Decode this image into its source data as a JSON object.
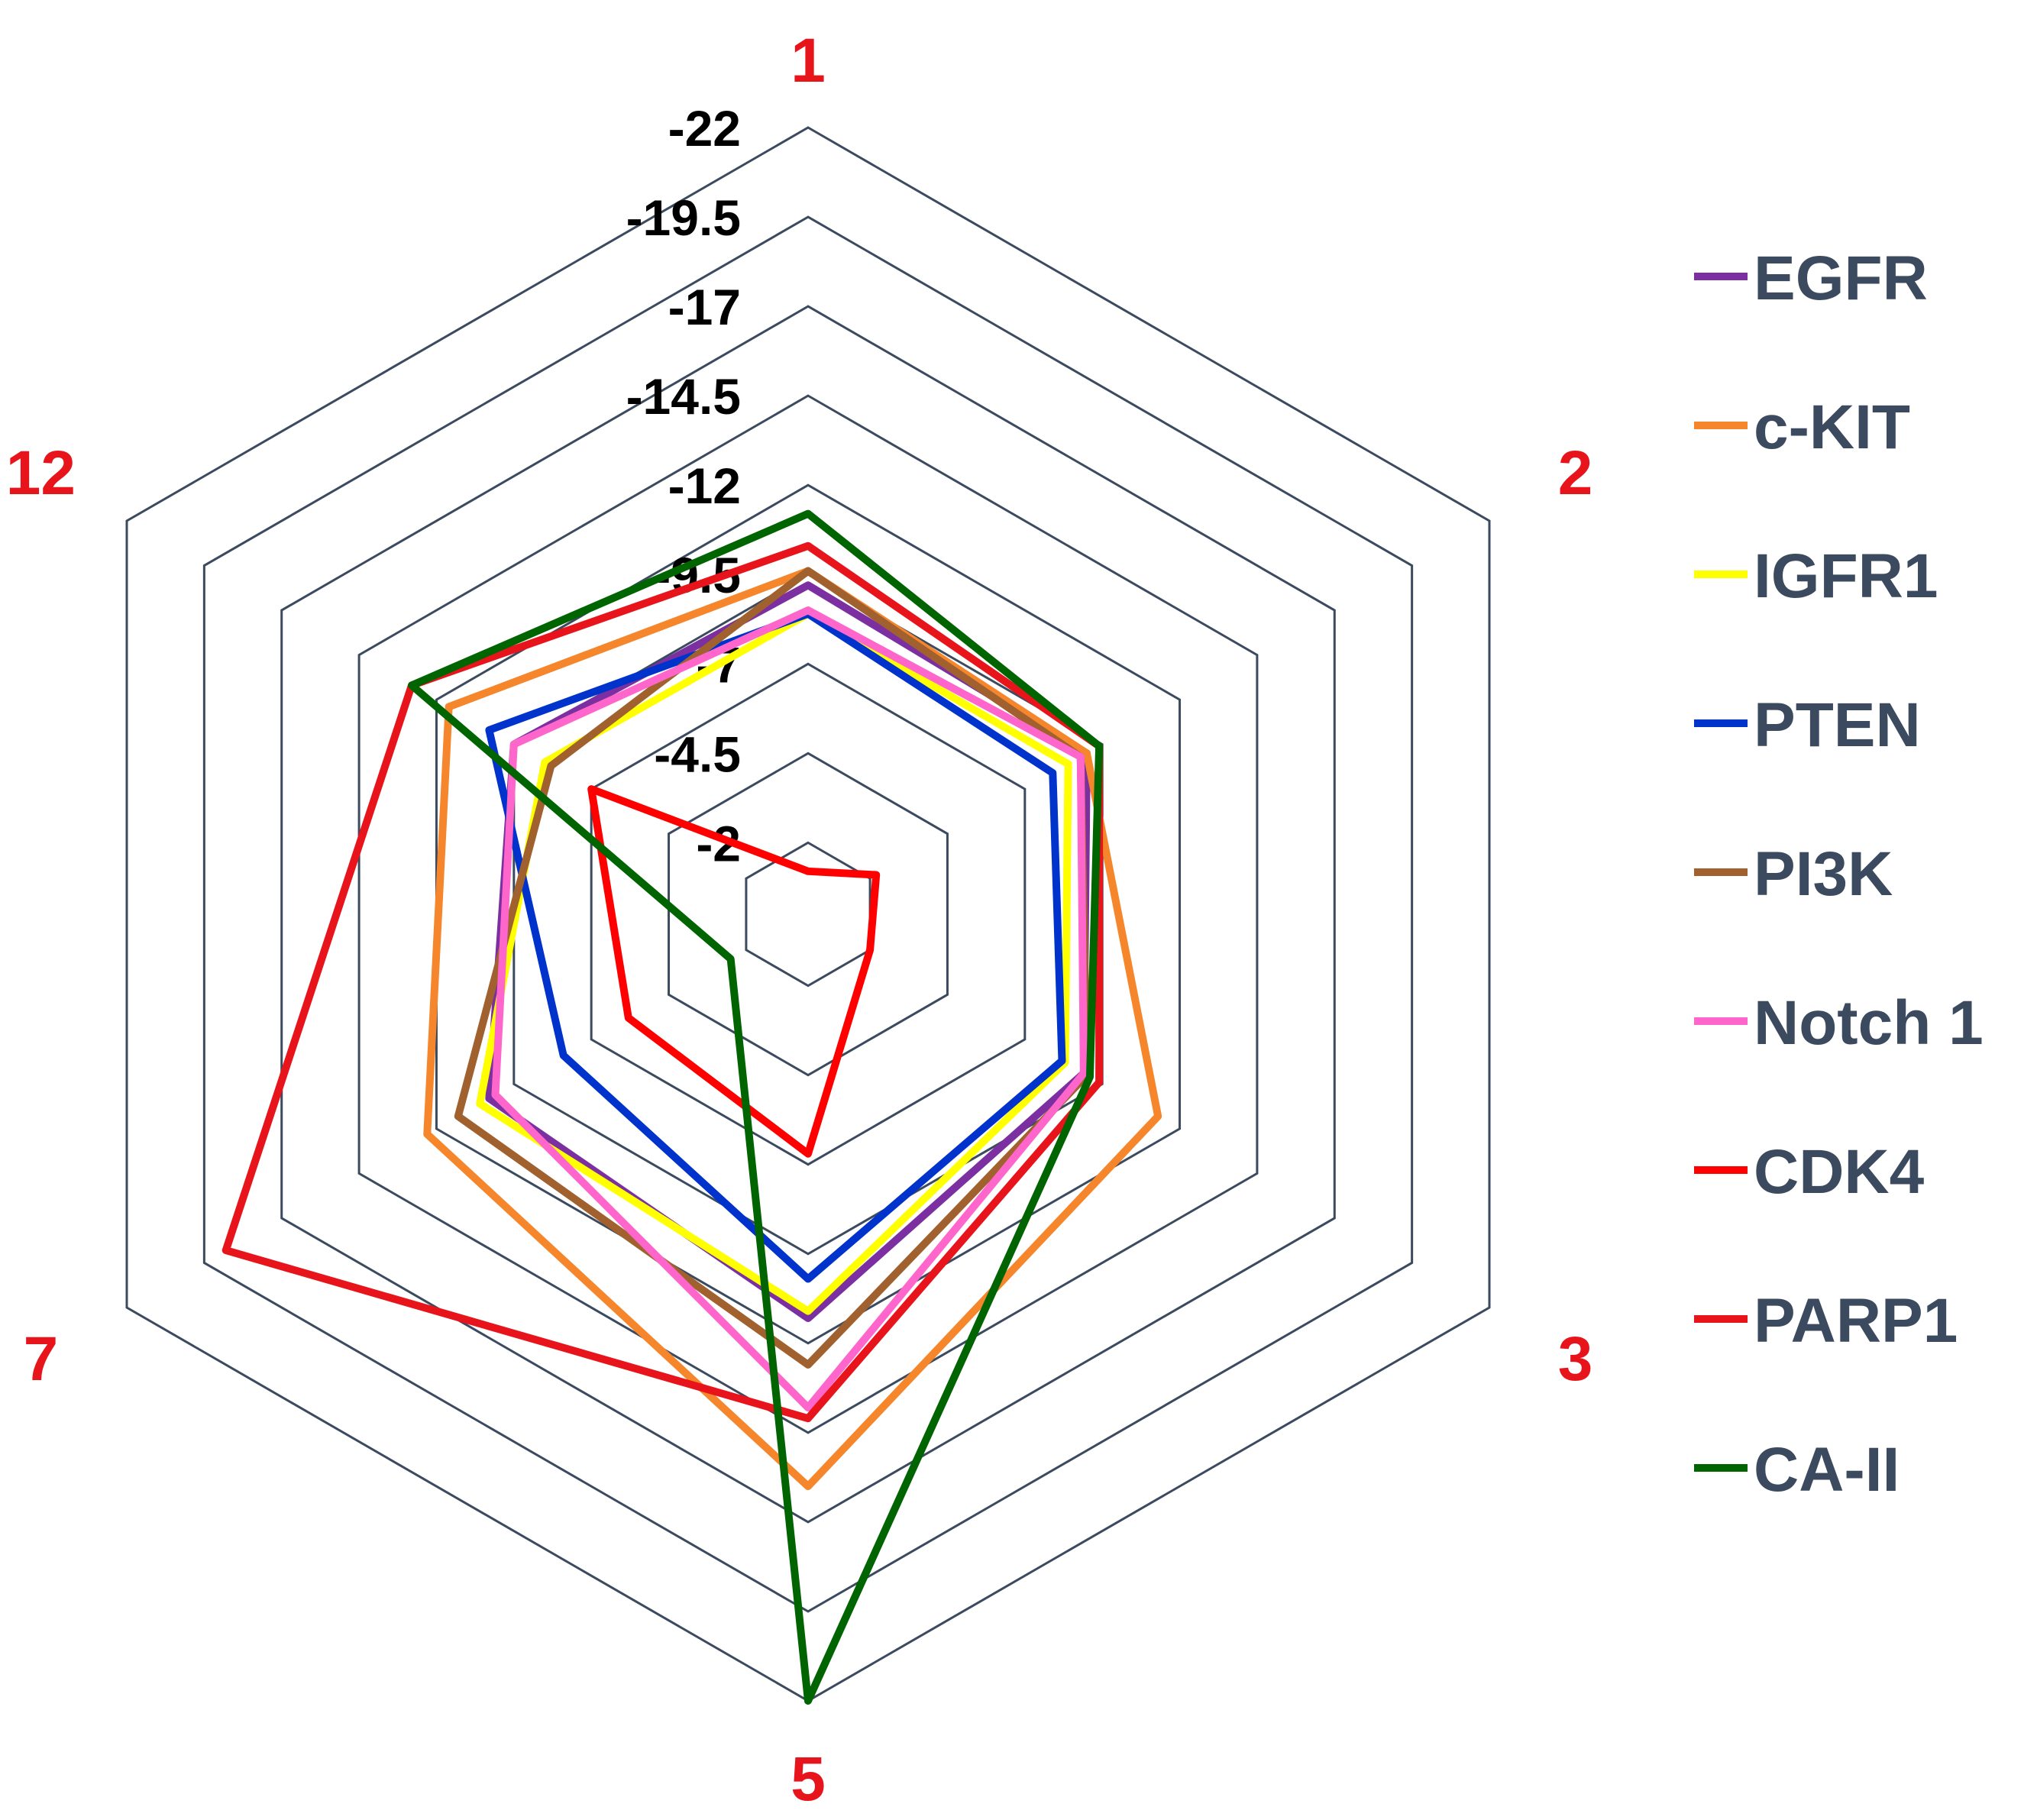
{
  "chart_data": {
    "type": "radar",
    "title": "",
    "categories": [
      "1",
      "2",
      "3",
      "5",
      "7",
      "12"
    ],
    "category_color": "#e8141b",
    "axis": {
      "ticks": [
        -2,
        -4.5,
        -7,
        -9.5,
        -12,
        -14.5,
        -17,
        -19.5,
        -22
      ],
      "tick_labels": [
        "-2",
        "-4.5",
        "-7",
        "-9.5",
        "-12",
        "-14.5",
        "-17",
        "-19.5",
        "-22"
      ],
      "range": [
        0,
        -22
      ],
      "rings_at": [
        -2,
        -4.5,
        -7,
        -9.5,
        -12,
        -14.5,
        -17,
        -19.5,
        -22
      ],
      "ring_color": "#3b4a5e"
    },
    "legend_position": "right",
    "series": [
      {
        "name": "EGFR",
        "color": "#7b2fa0",
        "values": [
          -9.2,
          -9.0,
          -8.9,
          -11.3,
          -10.3,
          -9.5
        ]
      },
      {
        "name": "c-KIT",
        "color": "#f5862b",
        "values": [
          -9.6,
          -9.0,
          -11.3,
          -16.0,
          -12.3,
          -11.6
        ]
      },
      {
        "name": "IGFR1",
        "color": "#ffff00",
        "values": [
          -8.4,
          -8.4,
          -8.3,
          -11.1,
          -10.6,
          -8.5
        ]
      },
      {
        "name": "PTEN",
        "color": "#0033cc",
        "values": [
          -8.4,
          -7.9,
          -8.2,
          -10.2,
          -7.9,
          -10.3
        ]
      },
      {
        "name": "PI3K",
        "color": "#a0612e",
        "values": [
          -9.6,
          -8.8,
          -9.0,
          -12.6,
          -11.3,
          -8.3
        ]
      },
      {
        "name": "Notch 1",
        "color": "#ff66cc",
        "values": [
          -8.5,
          -8.8,
          -8.9,
          -13.8,
          -10.1,
          -9.5
        ]
      },
      {
        "name": "CDK4",
        "color": "#ff0000",
        "values": [
          -1.2,
          -2.2,
          -2.0,
          -6.7,
          -5.8,
          -7.0
        ]
      },
      {
        "name": "PARP1",
        "color": "#e8141b",
        "values": [
          -10.3,
          -9.4,
          -9.4,
          -14.1,
          -18.8,
          -12.8
        ]
      },
      {
        "name": "CA-II",
        "color": "#006400",
        "values": [
          -11.2,
          -9.4,
          -9.1,
          -22.0,
          -2.5,
          -12.8
        ]
      }
    ]
  }
}
